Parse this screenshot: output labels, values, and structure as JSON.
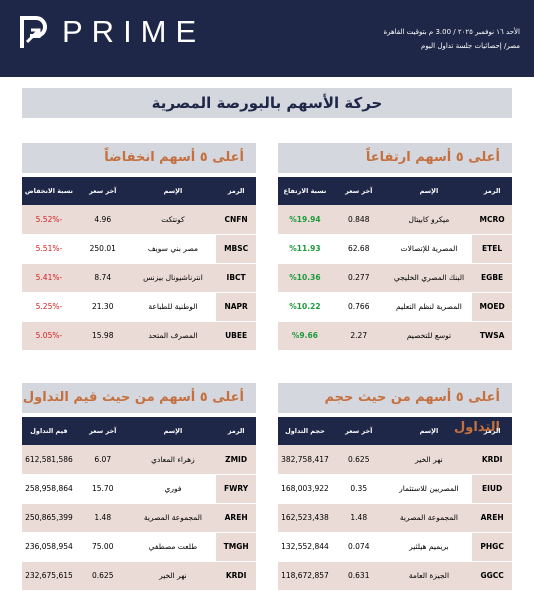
{
  "header": {
    "brand": "PRIME",
    "date_line": "الأحد ١٦ نوفمبر ٢٠٢٥ / 3.00 م بتوقيت القاهرة",
    "subtitle": "مصر/ إحصائيات جلسة تداول اليوم"
  },
  "title": "حركة الأسهم بالبورصة المصرية",
  "tables": [
    {
      "title": "أعلى ٥ أسهم ارتفاعاً",
      "kind": "up",
      "columns": [
        "الرمز",
        "الإسم",
        "آخر سعر",
        "نسبة الارتفاع"
      ],
      "rows": [
        [
          "MCRO",
          "ميكرو كابيتال",
          "0.848",
          "%19.94"
        ],
        [
          "ETEL",
          "المصرية للإتصالات",
          "62.68",
          "%11.93"
        ],
        [
          "EGBE",
          "البنك المصري الخليجي",
          "0.277",
          "%10.36"
        ],
        [
          "MOED",
          "المصرية لنظم التعليم",
          "0.766",
          "%10.22"
        ],
        [
          "TWSA",
          "توسع للتخصيم",
          "2.27",
          "%9.66"
        ]
      ]
    },
    {
      "title": "أعلى ٥ أسهم انخفاضاً",
      "kind": "down",
      "columns": [
        "الرمز",
        "الإسم",
        "آخر سعر",
        "نسبة الانخفاض"
      ],
      "rows": [
        [
          "CNFN",
          "كونتكت",
          "4.96",
          "-5.52%"
        ],
        [
          "MBSC",
          "مصر بني سويف",
          "250.01",
          "-5.51%"
        ],
        [
          "IBCT",
          "انترناشيونال بيزنس",
          "8.74",
          "-5.41%"
        ],
        [
          "NAPR",
          "الوطنية للطباعة",
          "21.30",
          "-5.25%"
        ],
        [
          "UBEE",
          "المصرف المتحد",
          "15.98",
          "-5.05%"
        ]
      ]
    },
    {
      "title": "أعلى ٥ أسهم من حيث حجم التداول",
      "kind": "plain",
      "columns": [
        "الرمز",
        "الإسم",
        "آخر سعر",
        "حجم التداول"
      ],
      "rows": [
        [
          "KRDI",
          "نهر الخير",
          "0.625",
          "382,758,417"
        ],
        [
          "EIUD",
          "المصريين للاستثمار",
          "0.35",
          "168,003,922"
        ],
        [
          "AREH",
          "المجموعة المصرية",
          "1.48",
          "162,523,438"
        ],
        [
          "PHGC",
          "بريميم هيلثير",
          "0.074",
          "132,552,844"
        ],
        [
          "GGCC",
          "الجيزة العامة",
          "0.631",
          "118,672,857"
        ]
      ]
    },
    {
      "title": "أعلى ٥ أسهم من حيث قيم التداول",
      "kind": "plain",
      "columns": [
        "الرمز",
        "الإسم",
        "آخر سعر",
        "قيم التداول"
      ],
      "rows": [
        [
          "ZMID",
          "زهراء المعادي",
          "6.07",
          "612,581,586"
        ],
        [
          "FWRY",
          "فوري",
          "15.70",
          "258,958,864"
        ],
        [
          "AREH",
          "المجموعة المصرية",
          "1.48",
          "250,865,399"
        ],
        [
          "TMGH",
          "طلعت مصطفي",
          "75.00",
          "236,058,954"
        ],
        [
          "KRDI",
          "نهر الخير",
          "0.625",
          "232,675,615"
        ]
      ]
    }
  ]
}
